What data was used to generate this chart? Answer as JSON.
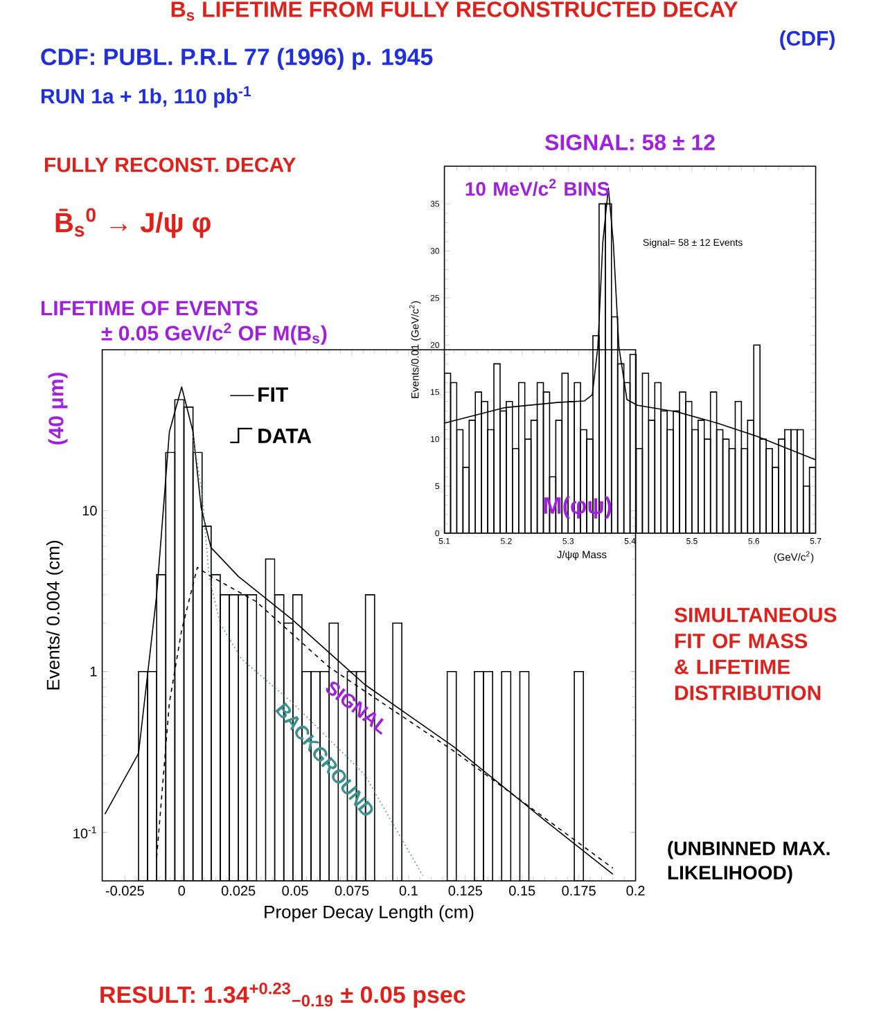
{
  "chart_data": [
    {
      "type": "histogram",
      "title": "B$_{s}$ LIFETIME FROM FULLY RECONSTRUCTED DECAY",
      "xlabel": "Proper Decay Length (cm)",
      "ylabel": "Events/ 0.004 (cm)",
      "xlim": [
        -0.035,
        0.2
      ],
      "ylim": [
        0.05,
        100
      ],
      "log": "y",
      "legend": "top",
      "xticks": [
        -0.025,
        0,
        0.025,
        0.05,
        0.075,
        0.1,
        0.125,
        0.15,
        0.175,
        0.2
      ],
      "yticks": [
        {
          "value": 0.1,
          "label": "10$^{-1}$"
        },
        1,
        10
      ],
      "series": [
        {
          "name": "FIT",
          "type": "line",
          "color": "#000000",
          "line_style": "solid",
          "x": [
            -0.0338,
            -0.019,
            -0.011,
            -0.0054,
            0,
            0.005,
            0.0086,
            0.0129,
            0.025,
            0.0488,
            0.0807,
            0.12,
            0.16,
            0.19
          ],
          "values": [
            0.13,
            0.31,
            3.0,
            30.9,
            58.7,
            31,
            10.4,
            5.9,
            3.9,
            2.1,
            0.83,
            0.34,
            0.119,
            0.055
          ]
        },
        {
          "name": "DATA",
          "color": "#000000",
          "bins": [
            -0.019,
            -0.015,
            -0.011,
            -0.007,
            -0.003,
            0.001,
            0.005,
            0.009,
            0.013,
            0.017,
            0.021,
            0.025,
            0.029,
            0.033,
            0.037,
            0.041,
            0.045,
            0.049,
            0.053,
            0.057,
            0.061,
            0.065,
            0.069,
            0.073,
            0.077,
            0.081,
            0.085,
            0.089,
            0.093,
            0.097,
            0.101,
            0.105,
            0.109,
            0.113,
            0.117,
            0.121,
            0.125,
            0.129,
            0.133,
            0.137,
            0.141,
            0.145,
            0.149,
            0.153,
            0.157,
            0.161,
            0.165,
            0.169,
            0.173,
            0.177,
            0.181,
            0.185,
            0.189,
            0.193,
            0.197
          ],
          "values": [
            1,
            1,
            4,
            23,
            49,
            44,
            23,
            8,
            4,
            3,
            3,
            3,
            3,
            null,
            5,
            3,
            2,
            3,
            1,
            1,
            1,
            2,
            null,
            1,
            1,
            3,
            null,
            null,
            2,
            null,
            null,
            null,
            null,
            null,
            1,
            null,
            null,
            1,
            1,
            null,
            1,
            null,
            1,
            null,
            null,
            null,
            null,
            null,
            1,
            null,
            null,
            null,
            null,
            null
          ]
        },
        {
          "name": "SIGNAL",
          "type": "line",
          "color": "#000000",
          "line_style": "dashed",
          "x": [
            -0.011,
            -0.0054,
            0,
            0.0069,
            0.0129,
            0.0329,
            0.0648,
            0.12,
            0.19
          ],
          "values": [
            0.07,
            0.64,
            1.81,
            4.44,
            3.9,
            2.72,
            1.07,
            0.32,
            0.06
          ]
        },
        {
          "name": "BACKGROUND",
          "type": "line",
          "color": "#3a8f8f",
          "line_style": "dotted",
          "x": [
            0.005,
            0.009,
            0.0121,
            0.0169,
            0.0265,
            0.0488,
            0.0807,
            0.1062
          ],
          "values": [
            29,
            12.8,
            3.9,
            2.0,
            1.19,
            0.64,
            0.228,
            0.054
          ]
        }
      ],
      "annotations": [
        "(CDF)",
        "CDF: PUBL. P.R.L 77 (1996) p. 1945",
        "RUN 1a + 1b, 110 pb$^{-1}$",
        "FULLY RECONST. DECAY",
        "B̄$_{s}$$^{0}$ → J/ψ φ",
        "LIFETIME OF EVENTS",
        "± 0.05 GeV/c$^{2}$ OF M(B$_{s}$)",
        "(40 μm)",
        "SIMULTANEOUS FIT OF MASS & LIFETIME DISTRIBUTION",
        "(UNBINNED MAX. LIKELIHOOD)",
        "RESULT: 1.34$^{+0.23}$$_{−0.19}$ ± 0.05 psec"
      ]
    },
    {
      "type": "histogram",
      "title": "SIGNAL: 58 ± 12",
      "xlabel": "J/ψφ Mass",
      "ylabel": "Events/0.01 (GeV/c$^{2}$)",
      "xlim": [
        5.1,
        5.7
      ],
      "ylim": [
        0,
        39
      ],
      "xticks": [
        5.1,
        5.2,
        5.3,
        5.4,
        5.5,
        5.6,
        5.7
      ],
      "yticks": [
        0,
        5,
        10,
        15,
        20,
        25,
        30,
        35
      ],
      "series": [
        {
          "color": "#000000",
          "bins": [
            5.1,
            5.11,
            5.12,
            5.13,
            5.14,
            5.15,
            5.16,
            5.17,
            5.18,
            5.19,
            5.2,
            5.21,
            5.22,
            5.23,
            5.24,
            5.25,
            5.26,
            5.27,
            5.28,
            5.29,
            5.3,
            5.31,
            5.32,
            5.33,
            5.34,
            5.35,
            5.36,
            5.37,
            5.38,
            5.39,
            5.4,
            5.41,
            5.42,
            5.43,
            5.44,
            5.45,
            5.46,
            5.47,
            5.48,
            5.49,
            5.5,
            5.51,
            5.52,
            5.53,
            5.54,
            5.55,
            5.56,
            5.57,
            5.58,
            5.59,
            5.6,
            5.61,
            5.62,
            5.63,
            5.64,
            5.65,
            5.66,
            5.67,
            5.68,
            5.69,
            5.7
          ],
          "values": [
            17,
            16,
            11,
            7,
            12,
            15,
            14,
            11,
            18,
            13,
            14,
            9,
            16,
            10,
            12,
            16,
            15,
            6,
            12,
            17,
            14,
            16,
            11,
            10,
            21,
            35,
            35,
            23,
            18,
            16,
            19,
            9,
            17,
            12,
            16,
            13,
            11,
            13,
            15,
            14,
            11,
            12,
            10,
            15,
            11,
            10,
            9,
            14,
            9,
            12,
            20,
            10,
            9,
            7,
            10,
            11,
            11,
            11,
            5,
            7
          ]
        },
        {
          "type": "line",
          "color": "#000000",
          "x": [
            5.1,
            5.198,
            5.283,
            5.326,
            5.339,
            5.348,
            5.356,
            5.365,
            5.373,
            5.382,
            5.395,
            5.412,
            5.476,
            5.541,
            5.605,
            5.7
          ],
          "values": [
            11.7,
            13.35,
            13.9,
            14.05,
            14.7,
            19.8,
            30.9,
            36.7,
            30.9,
            19.8,
            14.2,
            13.6,
            12.9,
            11.7,
            10.3,
            7.8
          ]
        }
      ],
      "annotations": [
        "Signal= 58 ± 12 Events",
        "10 MeV/c$^{2}$ BINS",
        "M(φψ)",
        "(GeV/c$^{2}$)"
      ]
    }
  ]
}
